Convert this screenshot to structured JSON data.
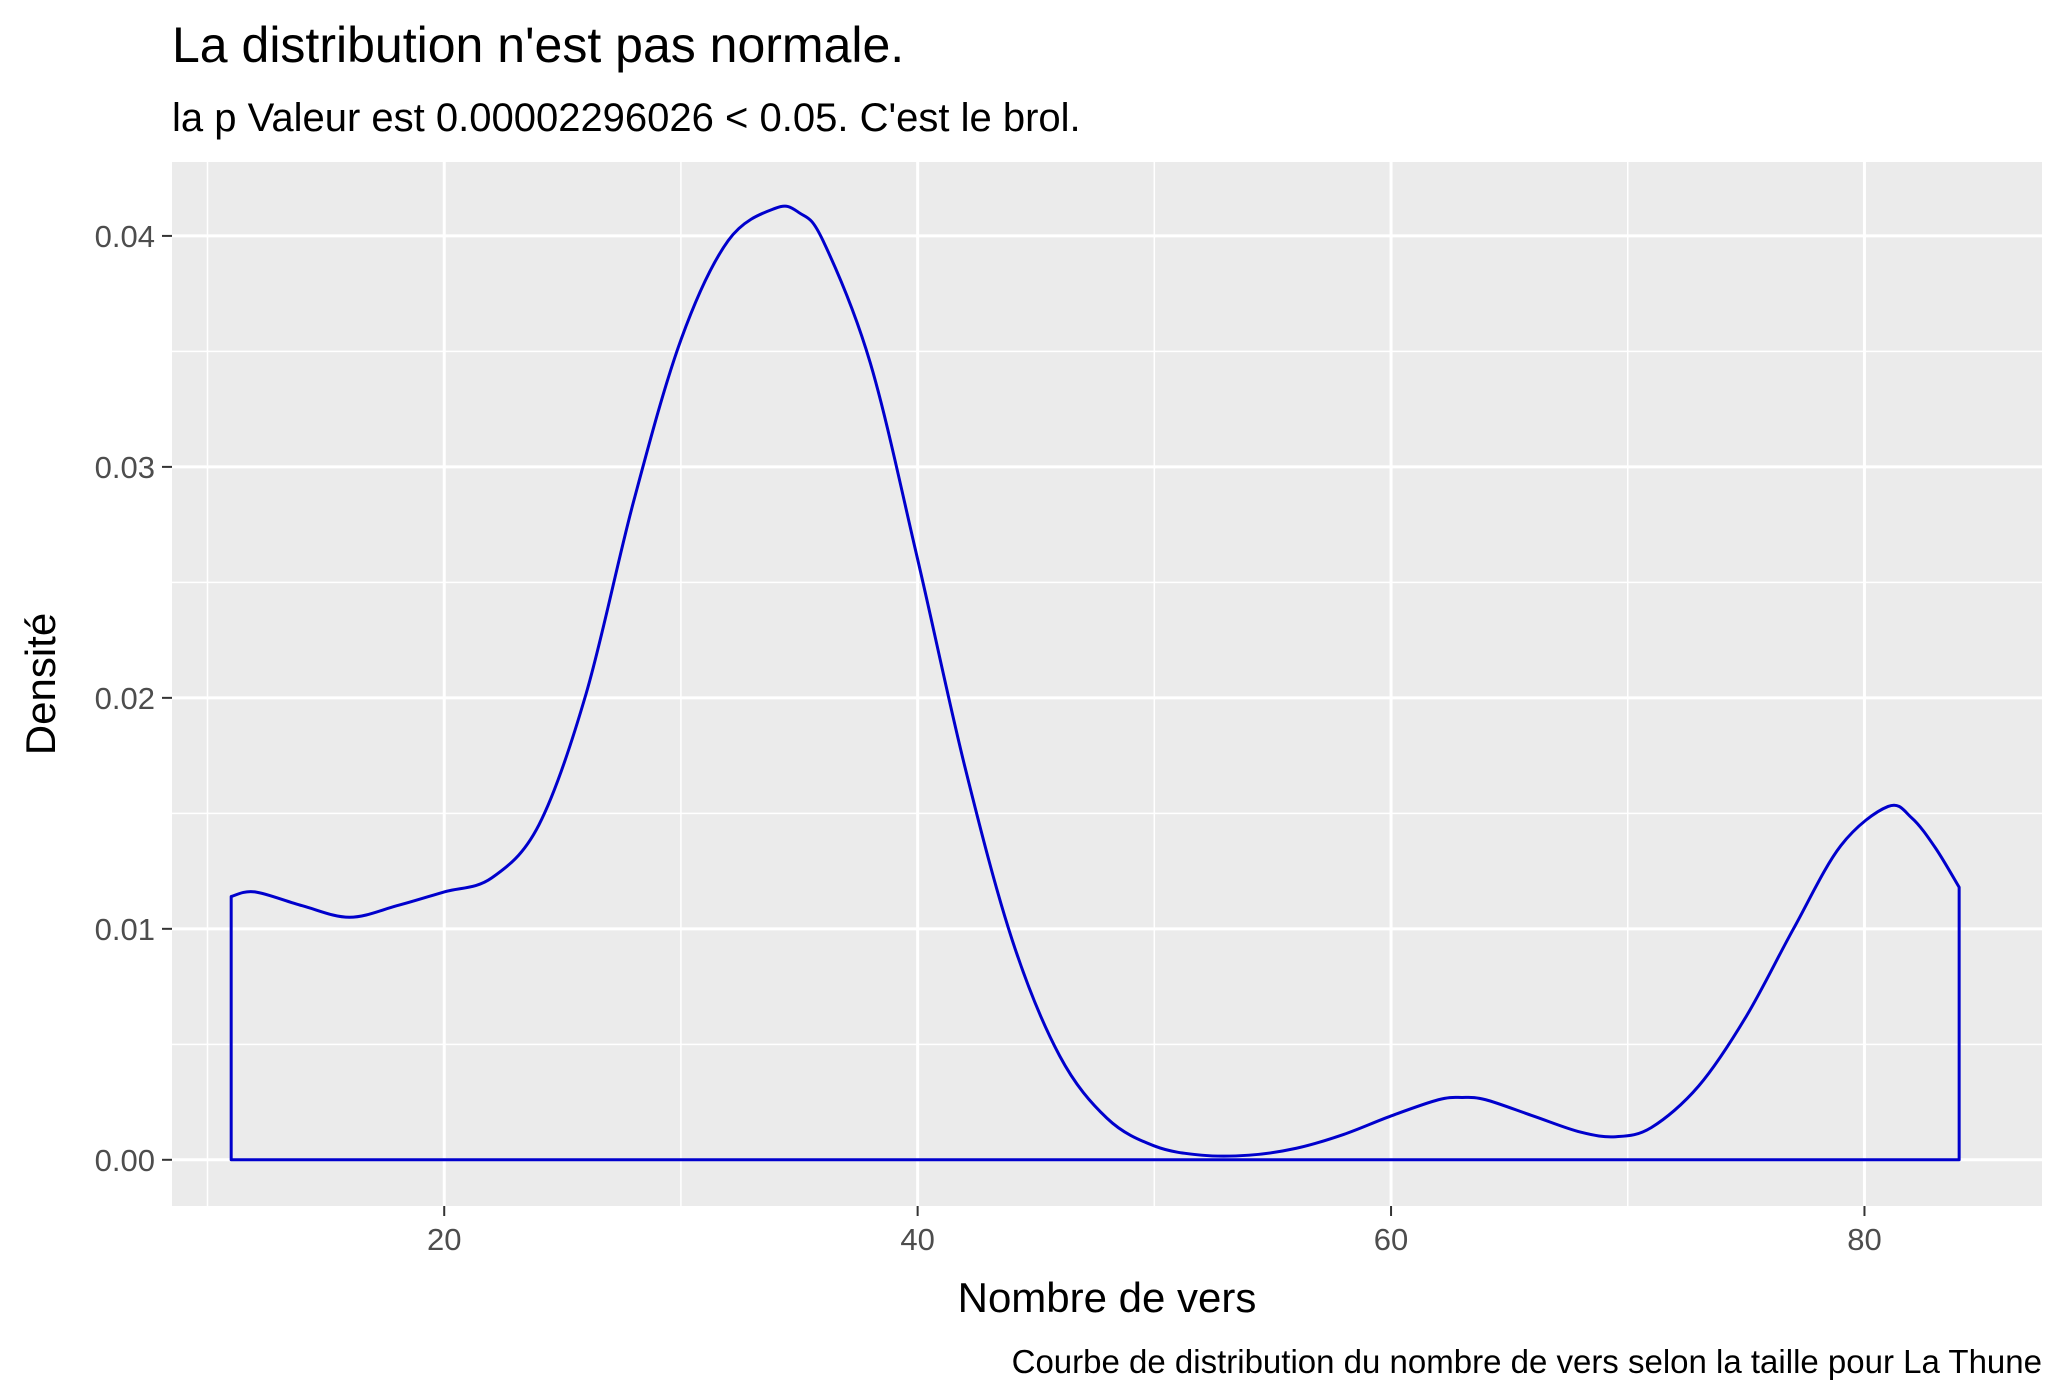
{
  "chart_data": {
    "type": "area",
    "title": "La distribution n'est pas normale.",
    "subtitle": "la p Valeur est  0.00002296026  < 0.05. C'est le brol.",
    "xlabel": "Nombre de vers",
    "ylabel": "Densité",
    "caption": "Courbe de distribution du nombre de vers selon la taille pour  La Thune",
    "xlim": [
      8.5,
      87.5
    ],
    "ylim": [
      -0.002,
      0.0432
    ],
    "x_ticks": [
      20,
      40,
      60,
      80
    ],
    "x_tick_labels": [
      "20",
      "40",
      "60",
      "80"
    ],
    "y_ticks": [
      0,
      0.01,
      0.02,
      0.03,
      0.04
    ],
    "y_tick_labels": [
      "0.00",
      "0.01",
      "0.02",
      "0.03",
      "0.04"
    ],
    "grid": true,
    "fill": "none",
    "line_color": "#0000cc",
    "panel_background": "#ebebeb",
    "grid_color": "#ffffff",
    "series": [
      {
        "x": [
          11,
          12,
          14,
          16,
          18,
          20,
          22,
          24,
          26,
          28,
          30,
          32,
          34,
          35,
          36,
          38,
          40,
          42,
          44,
          46,
          48,
          50,
          52,
          54,
          56,
          58,
          60,
          62,
          63,
          64,
          66,
          68,
          69.5,
          71,
          73,
          75,
          77,
          79,
          81,
          82,
          83,
          84
        ],
        "y": [
          0.0114,
          0.0116,
          0.011,
          0.0105,
          0.011,
          0.0116,
          0.0122,
          0.0145,
          0.0202,
          0.0285,
          0.0355,
          0.0398,
          0.0412,
          0.041,
          0.0398,
          0.0345,
          0.026,
          0.017,
          0.0095,
          0.0045,
          0.0018,
          0.0006,
          0.0002,
          0.0002,
          0.0005,
          0.0011,
          0.0019,
          0.0026,
          0.0027,
          0.0026,
          0.0019,
          0.0012,
          0.001,
          0.0014,
          0.0032,
          0.0062,
          0.01,
          0.0136,
          0.0153,
          0.0148,
          0.0135,
          0.0118
        ]
      }
    ]
  }
}
